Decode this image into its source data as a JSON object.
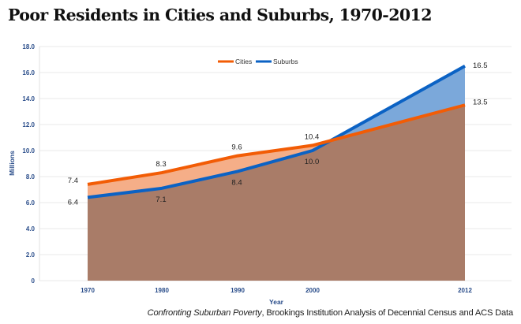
{
  "chart_data": {
    "type": "area",
    "title": "Poor Residents in Cities and Suburbs, 1970-2012",
    "xlabel": "Year",
    "ylabel": "Millions",
    "categories": [
      "1970",
      "1980",
      "1990",
      "2000",
      "2012"
    ],
    "ylim": [
      0,
      18
    ],
    "yticks": [
      "0",
      "2.0",
      "4.0",
      "6.0",
      "8.0",
      "10.0",
      "12.0",
      "14.0",
      "16.0",
      "18.0"
    ],
    "grid": true,
    "legend_placement": "top-center",
    "series": [
      {
        "name": "Cities",
        "values": [
          7.4,
          8.3,
          9.6,
          10.4,
          13.5
        ],
        "labels": [
          "7.4",
          "8.3",
          "9.6",
          "10.4",
          "13.5"
        ],
        "line_color": "#f25c05",
        "fill_color": "#f5ae88"
      },
      {
        "name": "Suburbs",
        "values": [
          6.4,
          7.1,
          8.4,
          10.0,
          16.5
        ],
        "labels": [
          "6.4",
          "7.1",
          "8.4",
          "10.0",
          "16.5"
        ],
        "line_color": "#0b62c4",
        "fill_color": "#7ba8da"
      }
    ],
    "overlap_color": "#a97c68",
    "axis_text_color": "#2a4d8a"
  },
  "source": {
    "italic": "Confronting Suburban Poverty",
    "rest": ", Brookings Institution Analysis of Decennial Census and ACS Data"
  }
}
